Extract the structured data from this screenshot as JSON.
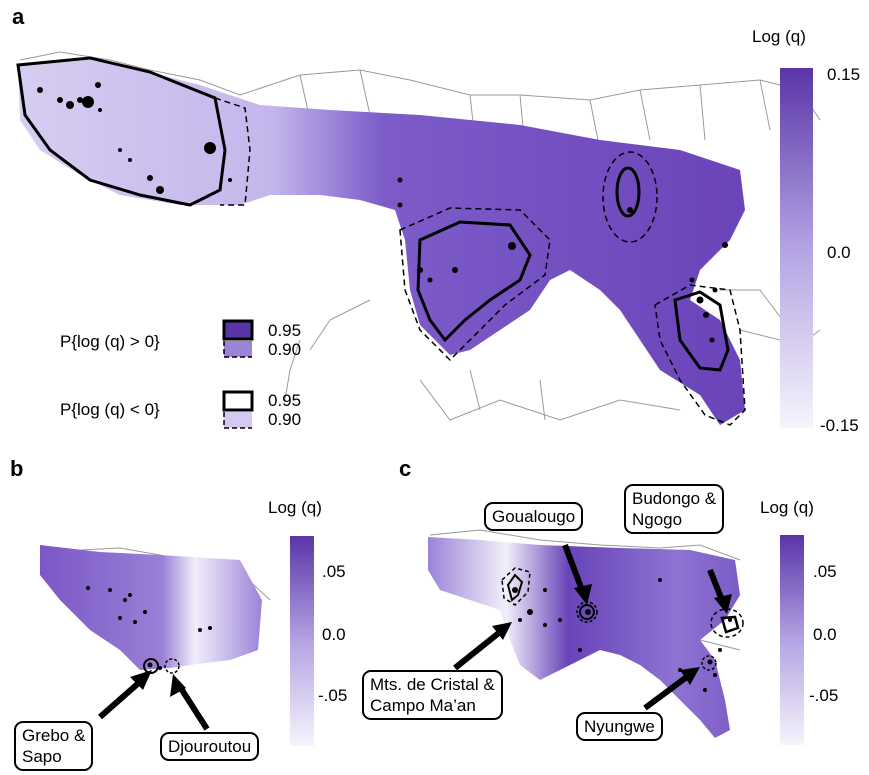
{
  "panel_a": {
    "letter": "a",
    "colorbar_title": "Log (q)",
    "colorbar_ticks": [
      "0.15",
      "0.0",
      "-0.15"
    ],
    "legend": [
      {
        "label": "P{log (q) > 0}",
        "levels": [
          "0.95",
          "0.90"
        ]
      },
      {
        "label": "P{log (q) < 0}",
        "levels": [
          "0.95",
          "0.90"
        ]
      }
    ]
  },
  "panel_b": {
    "letter": "b",
    "colorbar_title": "Log (q)",
    "colorbar_ticks": [
      ".05",
      "0.0",
      "-.05"
    ],
    "callouts": [
      "Grebo &\nSapo",
      "Djouroutou"
    ]
  },
  "panel_c": {
    "letter": "c",
    "colorbar_title": "Log (q)",
    "colorbar_ticks": [
      ".05",
      "0.0",
      "-.05"
    ],
    "callouts": [
      "Goualougo",
      "Budongo &\nNgogo",
      "Mts. de Cristal &\nCampo Ma’an",
      "Nyungwe"
    ]
  },
  "colors": {
    "high": "#5a35a8",
    "mid": "#a48fdc",
    "low": "#f4f2fb"
  }
}
